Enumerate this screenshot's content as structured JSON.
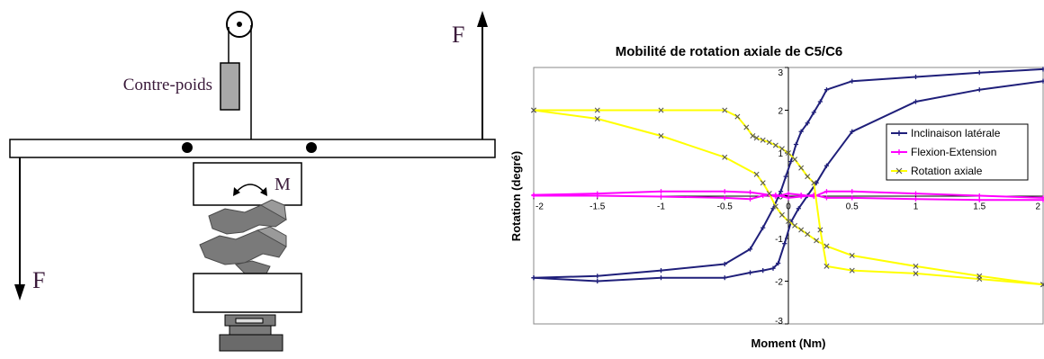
{
  "diagram": {
    "counterweight_label": "Contre-poids",
    "force_label_top": "F",
    "force_label_bottom": "F",
    "moment_label": "M"
  },
  "colors": {
    "lateral": "#1f1f7a",
    "flexion": "#ff00ff",
    "axial": "#ffff00",
    "axial_marker": "#555555",
    "frame": "#000000",
    "diagram_gray": "#a8a8a8",
    "vertebra_gray": "#7a7a7a"
  },
  "chart_data": {
    "type": "line",
    "title": "Mobilité de rotation axiale de C5/C6",
    "xlabel": "Moment (Nm)",
    "ylabel": "Rotation (degré)",
    "xlim": [
      -2,
      2
    ],
    "ylim": [
      -3,
      3
    ],
    "x_ticks": [
      "-2",
      "-1.5",
      "-1",
      "-0.5",
      "0",
      "0.5",
      "1",
      "1.5",
      "2"
    ],
    "x_tick_values": [
      -2,
      -1.5,
      -1,
      -0.5,
      0,
      0.5,
      1,
      1.5,
      2
    ],
    "y_ticks": [
      "3",
      "2",
      "1",
      "0",
      "-1",
      "-2",
      "-3"
    ],
    "y_tick_values": [
      3,
      2,
      1,
      0,
      -1,
      -2,
      -3
    ],
    "grid": false,
    "legend_position": "right",
    "series": [
      {
        "name": "Inclinaison latérale",
        "marker": "plus",
        "color_key": "lateral",
        "segments": [
          [
            [
              -2,
              -1.92
            ],
            [
              -1.5,
              -1.88
            ],
            [
              -1,
              -1.75
            ],
            [
              -0.5,
              -1.6
            ],
            [
              -0.3,
              -1.25
            ],
            [
              -0.2,
              -0.75
            ],
            [
              -0.12,
              -0.3
            ],
            [
              -0.06,
              0.1
            ],
            [
              -0.02,
              0.45
            ],
            [
              0.02,
              0.8
            ],
            [
              0.06,
              1.2
            ],
            [
              0.1,
              1.5
            ],
            [
              0.15,
              1.7
            ],
            [
              0.2,
              1.95
            ],
            [
              0.25,
              2.2
            ],
            [
              0.3,
              2.48
            ],
            [
              0.5,
              2.68
            ],
            [
              1,
              2.78
            ],
            [
              1.5,
              2.88
            ],
            [
              2,
              2.96
            ]
          ],
          [
            [
              2,
              2.68
            ],
            [
              1.5,
              2.48
            ],
            [
              1,
              2.2
            ],
            [
              0.5,
              1.5
            ],
            [
              0.3,
              0.7
            ],
            [
              0.22,
              0.3
            ],
            [
              0.15,
              0
            ],
            [
              0.08,
              -0.3
            ],
            [
              0.02,
              -0.62
            ],
            [
              -0.03,
              -1.12
            ],
            [
              -0.08,
              -1.58
            ],
            [
              -0.12,
              -1.7
            ],
            [
              -0.2,
              -1.75
            ],
            [
              -0.3,
              -1.8
            ],
            [
              -0.5,
              -1.92
            ],
            [
              -1,
              -1.92
            ],
            [
              -1.5,
              -2.0
            ],
            [
              -2,
              -1.92
            ]
          ]
        ]
      },
      {
        "name": "Flexion-Extension",
        "marker": "plus",
        "color_key": "flexion",
        "segments": [
          [
            [
              -2,
              0.02
            ],
            [
              -1.5,
              0.05
            ],
            [
              -1,
              0.1
            ],
            [
              -0.5,
              0.1
            ],
            [
              -0.3,
              0.08
            ],
            [
              -0.15,
              0.02
            ],
            [
              -0.1,
              -0.02
            ],
            [
              0,
              0.05
            ],
            [
              0.1,
              0.02
            ],
            [
              0.2,
              -0.02
            ],
            [
              0.3,
              0.1
            ],
            [
              0.5,
              0.1
            ],
            [
              1,
              0.05
            ],
            [
              1.5,
              0
            ],
            [
              2,
              -0.05
            ]
          ],
          [
            [
              2,
              -0.1
            ],
            [
              1.5,
              -0.1
            ],
            [
              1,
              -0.08
            ],
            [
              0.5,
              -0.05
            ],
            [
              0.3,
              -0.05
            ],
            [
              0.2,
              0.02
            ],
            [
              0.1,
              -0.02
            ],
            [
              0,
              -0.05
            ],
            [
              -0.1,
              0.02
            ],
            [
              -0.2,
              0
            ],
            [
              -0.3,
              -0.08
            ],
            [
              -0.5,
              -0.05
            ],
            [
              -1,
              -0.02
            ],
            [
              -1.5,
              0
            ],
            [
              -2,
              0
            ]
          ]
        ]
      },
      {
        "name": "Rotation axiale",
        "marker": "x",
        "color_key": "axial",
        "segments": [
          [
            [
              -2,
              2.0
            ],
            [
              -1.5,
              2.0
            ],
            [
              -1,
              2.0
            ],
            [
              -0.5,
              2.0
            ],
            [
              -0.4,
              1.85
            ],
            [
              -0.33,
              1.6
            ],
            [
              -0.28,
              1.4
            ],
            [
              -0.25,
              1.35
            ],
            [
              -0.2,
              1.3
            ],
            [
              -0.15,
              1.25
            ],
            [
              -0.1,
              1.18
            ],
            [
              -0.05,
              1.1
            ],
            [
              0,
              1.0
            ],
            [
              0.05,
              0.85
            ],
            [
              0.1,
              0.65
            ],
            [
              0.15,
              0.45
            ],
            [
              0.2,
              0.3
            ],
            [
              0.25,
              -0.8
            ],
            [
              0.3,
              -1.65
            ],
            [
              0.5,
              -1.75
            ],
            [
              1,
              -1.82
            ],
            [
              1.5,
              -1.95
            ],
            [
              2,
              -2.08
            ]
          ],
          [
            [
              2,
              -2.08
            ],
            [
              1.5,
              -1.88
            ],
            [
              1,
              -1.65
            ],
            [
              0.5,
              -1.4
            ],
            [
              0.3,
              -1.18
            ],
            [
              0.22,
              -1.05
            ],
            [
              0.15,
              -0.9
            ],
            [
              0.1,
              -0.8
            ],
            [
              0.05,
              -0.7
            ],
            [
              0,
              -0.6
            ],
            [
              -0.05,
              -0.45
            ],
            [
              -0.1,
              -0.25
            ],
            [
              -0.15,
              0.05
            ],
            [
              -0.2,
              0.3
            ],
            [
              -0.25,
              0.5
            ],
            [
              -0.5,
              0.9
            ],
            [
              -1,
              1.4
            ],
            [
              -1.5,
              1.8
            ],
            [
              -2,
              2.0
            ]
          ]
        ]
      }
    ]
  }
}
